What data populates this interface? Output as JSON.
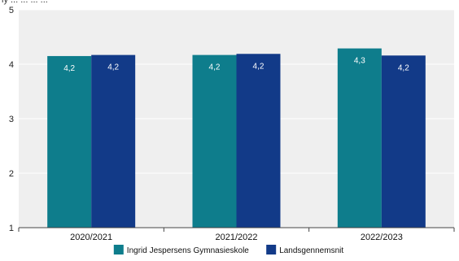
{
  "chart_data": {
    "type": "bar",
    "title_fragment": "ly ... ... ... ...",
    "categories": [
      "2020/2021",
      "2021/2022",
      "2022/2023"
    ],
    "series": [
      {
        "name": "Ingrid Jespersens Gymnasieskole",
        "values": [
          4.15,
          4.17,
          4.29
        ],
        "labels": [
          "4,2",
          "4,2",
          "4,3"
        ],
        "color": "#0e7d8c"
      },
      {
        "name": "Landsgennemsnit",
        "values": [
          4.17,
          4.19,
          4.16
        ],
        "labels": [
          "4,2",
          "4,2",
          "4,2"
        ],
        "color": "#123a88"
      }
    ],
    "ylim": [
      1,
      5
    ],
    "yticks": [
      "1",
      "2",
      "3",
      "4",
      "5"
    ],
    "grid": true,
    "legend_position": "bottom",
    "plot_background": "#efefef",
    "gridline_color": "#ffffff"
  }
}
